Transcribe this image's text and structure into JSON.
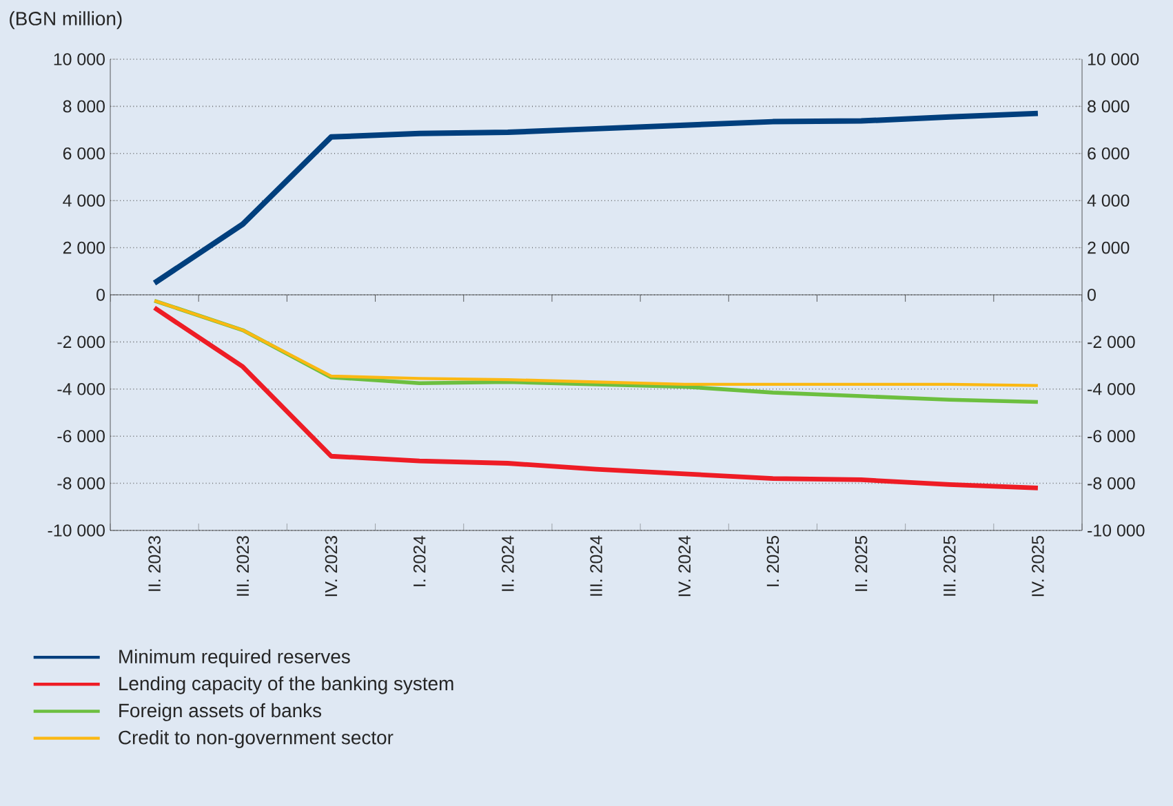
{
  "chart_data": {
    "type": "line",
    "annotations": [
      "(BGN million)"
    ],
    "categories": [
      "II. 2023",
      "III. 2023",
      "IV. 2023",
      "I. 2024",
      "II. 2024",
      "III. 2024",
      "IV. 2024",
      "I. 2025",
      "II. 2025",
      "III. 2025",
      "IV. 2025"
    ],
    "series": [
      {
        "name": "Minimum required reserves",
        "color": "#003f7d",
        "values": [
          500,
          3000,
          6700,
          6850,
          6900,
          7050,
          7200,
          7350,
          7380,
          7550,
          7700
        ]
      },
      {
        "name": "Lending capacity of the banking system",
        "color": "#ee1c25",
        "values": [
          -550,
          -3050,
          -6850,
          -7050,
          -7150,
          -7400,
          -7600,
          -7800,
          -7850,
          -8050,
          -8200
        ]
      },
      {
        "name": "Foreign assets of banks",
        "color": "#6cbf3f",
        "values": [
          -250,
          -1500,
          -3500,
          -3750,
          -3700,
          -3800,
          -3900,
          -4150,
          -4300,
          -4450,
          -4550
        ]
      },
      {
        "name": "Credit to non-government sector",
        "color": "#fbb813",
        "values": [
          -250,
          -1500,
          -3450,
          -3550,
          -3600,
          -3700,
          -3800,
          -3800,
          -3800,
          -3800,
          -3850
        ]
      }
    ],
    "ylim": [
      -10000,
      10000
    ],
    "yticks": [
      {
        "value": -10000,
        "label": "-10 000"
      },
      {
        "value": -8000,
        "label": "-8 000"
      },
      {
        "value": -6000,
        "label": "-6 000"
      },
      {
        "value": -4000,
        "label": "-4 000"
      },
      {
        "value": -2000,
        "label": "-2 000"
      },
      0,
      {
        "value": 2000,
        "label": "2 000"
      },
      {
        "value": 4000,
        "label": "4 000"
      },
      {
        "value": 6000,
        "label": "6 000"
      },
      {
        "value": 8000,
        "label": "8 000"
      },
      {
        "value": 10000,
        "label": "10 000"
      }
    ],
    "y2lim": [
      -10000,
      10000
    ],
    "y2ticks": [
      {
        "value": -10000,
        "label": "-10 000"
      },
      {
        "value": -8000,
        "label": "-8 000"
      },
      {
        "value": -6000,
        "label": "-6 000"
      },
      {
        "value": -4000,
        "label": "-4 000"
      },
      {
        "value": -2000,
        "label": "-2 000"
      },
      0,
      {
        "value": 2000,
        "label": "2 000"
      },
      {
        "value": 4000,
        "label": "4 000"
      },
      {
        "value": 6000,
        "label": "6 000"
      },
      {
        "value": 8000,
        "label": "8 000"
      },
      {
        "value": 10000,
        "label": "10 000"
      }
    ],
    "grid": "y",
    "legend": "bottom",
    "marker": "none"
  }
}
